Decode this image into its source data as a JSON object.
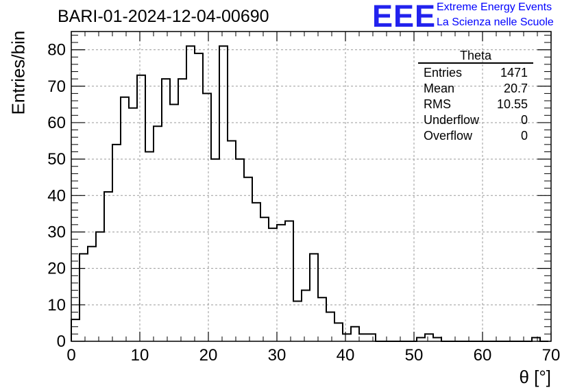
{
  "title": "BARI-01-2024-12-04-00690",
  "logo": {
    "mark": "EEE",
    "line1": "Extreme Energy Events",
    "line2": "La Scienza nelle Scuole",
    "color": "#0000ff"
  },
  "stats_box": {
    "title": "Theta",
    "rows": [
      {
        "label": "Entries",
        "value": "1471"
      },
      {
        "label": "Mean",
        "value": "20.7"
      },
      {
        "label": "RMS",
        "value": "10.55"
      },
      {
        "label": "Underflow",
        "value": "0"
      },
      {
        "label": "Overflow",
        "value": "0"
      }
    ]
  },
  "chart_data": {
    "type": "histogram",
    "title": "BARI-01-2024-12-04-00690",
    "xlabel": "θ [°]",
    "ylabel": "Entries/bin",
    "xlim": [
      0,
      70
    ],
    "ylim": [
      0,
      85
    ],
    "grid": true,
    "bin_width": 1.2,
    "bin_start": 0,
    "values": [
      6,
      24,
      26,
      30,
      41,
      54,
      67,
      64,
      73,
      52,
      59,
      72,
      65,
      72,
      81,
      79,
      68,
      50,
      81,
      55,
      50,
      45,
      38,
      34,
      31,
      32,
      33,
      11,
      14,
      24,
      12,
      8,
      5,
      2,
      4,
      2,
      2,
      0,
      0,
      0,
      0,
      0,
      1,
      2,
      1,
      0,
      0,
      0,
      0,
      0,
      0,
      0,
      0,
      0,
      0,
      0,
      1,
      0
    ],
    "x_ticks": [
      "0",
      "10",
      "20",
      "30",
      "40",
      "50",
      "60",
      "70"
    ],
    "y_ticks": [
      "0",
      "10",
      "20",
      "30",
      "40",
      "50",
      "60",
      "70",
      "80"
    ]
  }
}
